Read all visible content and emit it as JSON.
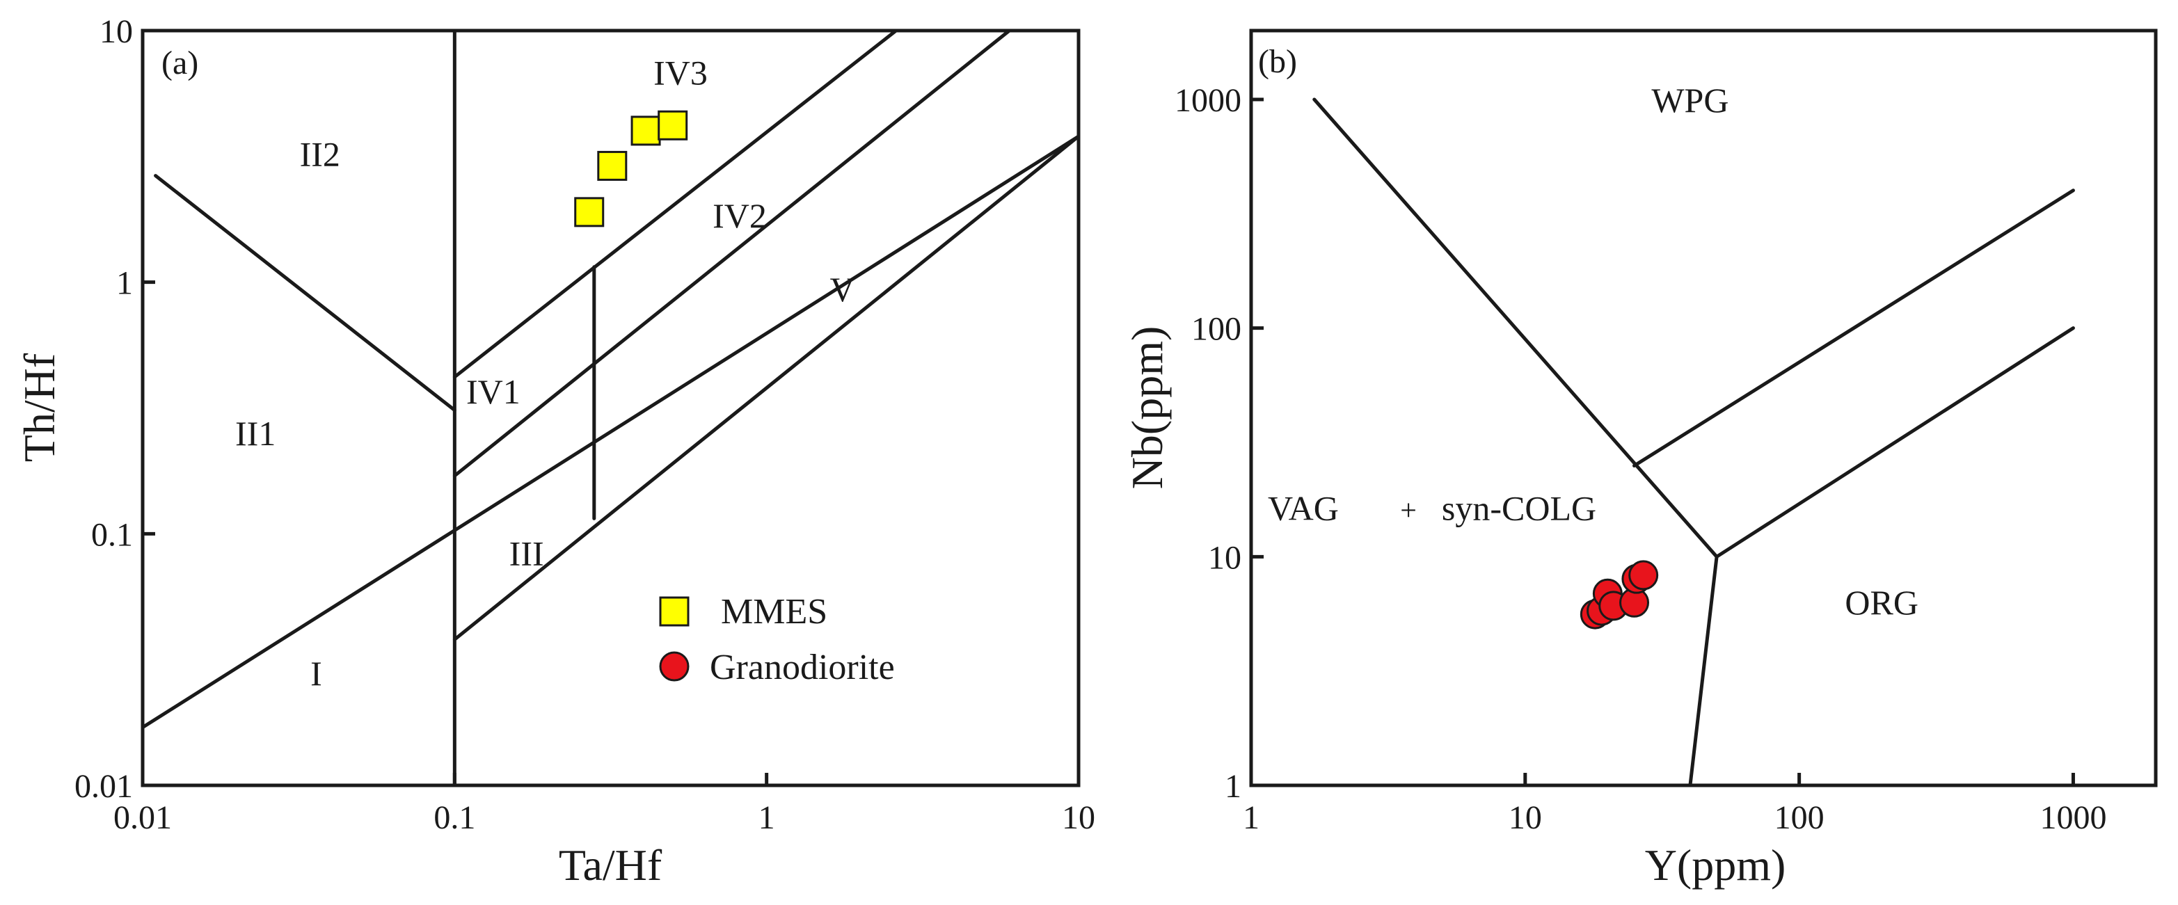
{
  "chart_data": [
    {
      "type": "scatter",
      "panel": "(a)",
      "xlabel": "Ta/Hf",
      "ylabel": "Th/Hf",
      "xscale": "log",
      "yscale": "log",
      "xlim": [
        0.01,
        10
      ],
      "ylim": [
        0.01,
        10
      ],
      "xticks": [
        {
          "value": 0.01,
          "label": "0.01"
        },
        {
          "value": 0.1,
          "label": "0.1"
        },
        {
          "value": 1,
          "label": "1"
        },
        {
          "value": 10,
          "label": "10"
        }
      ],
      "yticks": [
        {
          "value": 0.01,
          "label": "0.01"
        },
        {
          "value": 0.1,
          "label": "0.1"
        },
        {
          "value": 1,
          "label": "1"
        },
        {
          "value": 10,
          "label": "10"
        }
      ],
      "fields": [
        {
          "label": "II2",
          "x": 0.037,
          "y": 2.9
        },
        {
          "label": "II1",
          "x": 0.023,
          "y": 0.225
        },
        {
          "label": "I",
          "x": 0.036,
          "y": 0.025
        },
        {
          "label": "IV1",
          "x": 0.133,
          "y": 0.33
        },
        {
          "label": "III",
          "x": 0.17,
          "y": 0.075
        },
        {
          "label": "IV3",
          "x": 0.53,
          "y": 6.1
        },
        {
          "label": "IV2",
          "x": 0.82,
          "y": 1.65
        },
        {
          "label": "V",
          "x": 1.75,
          "y": 0.84
        }
      ],
      "boundaries": [
        [
          [
            0.01,
            0.017
          ],
          [
            10,
            3.8
          ]
        ],
        [
          [
            0.1,
            0.038
          ],
          [
            10,
            3.8
          ]
        ],
        [
          [
            0.1,
            0.42
          ],
          [
            2.6,
            10
          ]
        ],
        [
          [
            0.1,
            0.01
          ],
          [
            0.1,
            10
          ]
        ],
        [
          [
            0.011,
            2.65
          ],
          [
            0.1,
            0.31
          ]
        ],
        [
          [
            0.28,
            1.15
          ],
          [
            0.28,
            0.115
          ]
        ],
        [
          [
            0.1,
            0.17
          ],
          [
            6,
            10
          ]
        ]
      ],
      "series": [
        {
          "name": "MMES",
          "marker": "square",
          "color": "#ffff00",
          "points": [
            [
              0.27,
              1.9
            ],
            [
              0.32,
              2.9
            ],
            [
              0.41,
              4.0
            ],
            [
              0.5,
              4.2
            ]
          ]
        }
      ],
      "legend_entries": [
        {
          "label": "MMES",
          "marker": "square",
          "color": "#ffff00"
        },
        {
          "label": "Granodiorite",
          "marker": "circle",
          "color": "#e8141c"
        }
      ],
      "legend_position": "bottom-right"
    },
    {
      "type": "scatter",
      "panel": "(b)",
      "xlabel": "Y(ppm)",
      "ylabel": "Nb(ppm)",
      "xscale": "log",
      "yscale": "log",
      "xlim": [
        1,
        2000
      ],
      "ylim": [
        1,
        2000
      ],
      "xticks": [
        {
          "value": 1,
          "label": "1"
        },
        {
          "value": 10,
          "label": "10"
        },
        {
          "value": 100,
          "label": "100"
        },
        {
          "value": 1000,
          "label": "1000"
        }
      ],
      "yticks": [
        {
          "value": 1,
          "label": "1"
        },
        {
          "value": 10,
          "label": "10"
        },
        {
          "value": 100,
          "label": "100"
        },
        {
          "value": 1000,
          "label": "1000"
        }
      ],
      "fields": [
        {
          "label": "WPG",
          "x": 40,
          "y": 880
        },
        {
          "label": "ORG",
          "x": 200,
          "y": 5.6
        },
        {
          "label": "VAG",
          "x": 1.55,
          "y": 14.5
        },
        {
          "label": "+",
          "x": 3.75,
          "y": 14.5
        },
        {
          "label": "syn-COLG",
          "x": 9.5,
          "y": 14.5
        }
      ],
      "boundaries": [
        [
          [
            1.7,
            1000
          ],
          [
            50,
            10
          ]
        ],
        [
          [
            25,
            25
          ],
          [
            1000,
            400
          ]
        ],
        [
          [
            50,
            10
          ],
          [
            1000,
            100
          ]
        ],
        [
          [
            50,
            10
          ],
          [
            40,
            1
          ]
        ]
      ],
      "series": [
        {
          "name": "Granodiorite",
          "marker": "circle",
          "color": "#e8141c",
          "points": [
            [
              18,
              5.6
            ],
            [
              19,
              5.8
            ],
            [
              20,
              6.9
            ],
            [
              21,
              6.1
            ],
            [
              25,
              6.3
            ],
            [
              25.5,
              8.0
            ],
            [
              27,
              8.3
            ]
          ]
        }
      ]
    }
  ]
}
